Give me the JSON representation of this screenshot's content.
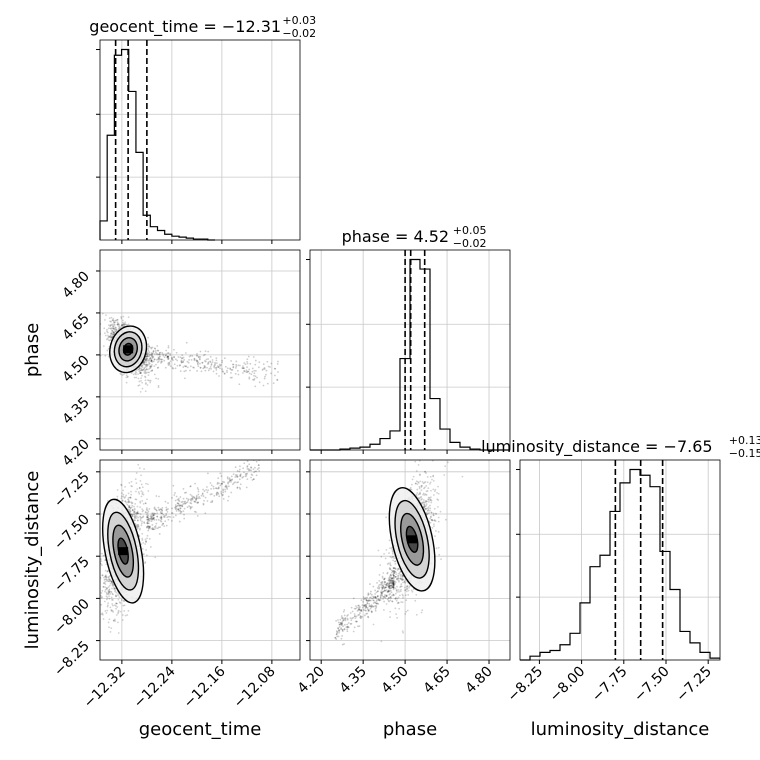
{
  "chart_data": {
    "type": "corner",
    "parameters": [
      "geocent_time",
      "phase",
      "luminosity_distance"
    ],
    "axis_labels": {
      "geocent_time": "geocent_time",
      "phase": "phase",
      "luminosity_distance": "luminosity_distance"
    },
    "titles": [
      {
        "param": "geocent_time",
        "text": "geocent_time = −12.31",
        "plus": "+0.03",
        "minus": "−0.02"
      },
      {
        "param": "phase",
        "text": "phase = 4.52",
        "plus": "+0.05",
        "minus": "−0.02"
      },
      {
        "param": "luminosity_distance",
        "text": "luminosity_distance = −7.65",
        "plus": "+0.13",
        "minus": "−0.15"
      }
    ],
    "ranges": {
      "geocent_time": [
        -12.355,
        -12.035
      ],
      "phase": [
        4.16,
        4.875
      ],
      "luminosity_distance": [
        -8.365,
        -7.18
      ]
    },
    "ticks": {
      "geocent_time": [
        -12.32,
        -12.24,
        -12.16,
        -12.08
      ],
      "phase": [
        4.2,
        4.35,
        4.5,
        4.65,
        4.8
      ],
      "luminosity_distance": [
        -8.25,
        -8.0,
        -7.75,
        -7.5,
        -7.25
      ]
    },
    "tick_labels": {
      "geocent_time": [
        "−12.32",
        "−12.24",
        "−12.16",
        "−12.08"
      ],
      "phase": [
        "4.20",
        "4.35",
        "4.50",
        "4.65",
        "4.80"
      ],
      "luminosity_distance": [
        "−8.25",
        "−8.00",
        "−7.75",
        "−7.50",
        "−7.25"
      ]
    },
    "quantiles": {
      "geocent_time": [
        -12.33,
        -12.31,
        -12.28
      ],
      "phase": [
        4.5,
        4.52,
        4.57
      ],
      "luminosity_distance": [
        -7.8,
        -7.65,
        -7.52
      ]
    },
    "histograms": {
      "geocent_time": {
        "edges": [
          -12.355,
          -12.3435,
          -12.332,
          -12.3205,
          -12.309,
          -12.2975,
          -12.286,
          -12.2745,
          -12.263,
          -12.2515,
          -12.24,
          -12.2285,
          -12.217,
          -12.2055,
          -12.194,
          -12.1825,
          -12.171
        ],
        "counts": [
          0.1,
          0.55,
          0.97,
          1.0,
          0.78,
          0.46,
          0.13,
          0.07,
          0.05,
          0.03,
          0.02,
          0.015,
          0.01,
          0.005,
          0.005,
          0.0
        ]
      },
      "phase": {
        "edges": [
          4.16,
          4.1957,
          4.2315,
          4.2672,
          4.303,
          4.3387,
          4.3745,
          4.4102,
          4.446,
          4.4817,
          4.5175,
          4.5532,
          4.589,
          4.6247,
          4.6605,
          4.6962,
          4.732,
          4.7677,
          4.8035,
          4.8392,
          4.875
        ],
        "counts": [
          0.0,
          0.0,
          0.0,
          0.005,
          0.01,
          0.015,
          0.03,
          0.06,
          0.1,
          0.48,
          1.0,
          0.95,
          0.27,
          0.11,
          0.04,
          0.015,
          0.005,
          0.0,
          0.0,
          0.0
        ]
      },
      "luminosity_distance": {
        "edges": [
          -8.365,
          -8.3057,
          -8.2465,
          -8.1872,
          -8.128,
          -8.0687,
          -8.0095,
          -7.9502,
          -7.891,
          -7.8317,
          -7.7725,
          -7.7132,
          -7.654,
          -7.5947,
          -7.5355,
          -7.4762,
          -7.417,
          -7.3577,
          -7.2985,
          -7.2392,
          -7.18
        ],
        "counts": [
          0.0,
          0.02,
          0.04,
          0.05,
          0.08,
          0.14,
          0.3,
          0.49,
          0.55,
          0.78,
          0.93,
          1.0,
          0.97,
          0.91,
          0.57,
          0.37,
          0.15,
          0.09,
          0.04,
          0.01
        ]
      }
    },
    "contour_levels": [
      "0.5σ",
      "1σ",
      "1.5σ",
      "2σ"
    ],
    "pairs": [
      {
        "x": "geocent_time",
        "y": "phase",
        "center": [
          -12.31,
          4.52
        ],
        "spread": [
          0.012,
          0.035
        ],
        "correlation": -0.55,
        "tail": {
          "from": [
            -12.29,
            4.5
          ],
          "to": [
            -12.07,
            4.43
          ],
          "spread": 0.02
        }
      },
      {
        "x": "geocent_time",
        "y": "luminosity_distance",
        "center": [
          -12.318,
          -7.72
        ],
        "spread": [
          0.012,
          0.13
        ],
        "correlation": 0.45,
        "tail": {
          "from": [
            -12.28,
            -7.55
          ],
          "to": [
            -12.1,
            -7.22
          ],
          "spread": 0.04
        }
      },
      {
        "x": "phase",
        "y": "luminosity_distance",
        "center": [
          4.525,
          -7.65
        ],
        "spread": [
          0.03,
          0.13
        ],
        "correlation": 0.5,
        "tail": {
          "from": [
            4.46,
            -7.9
          ],
          "to": [
            4.25,
            -8.2
          ],
          "spread": 0.04
        }
      }
    ],
    "grid": true
  }
}
